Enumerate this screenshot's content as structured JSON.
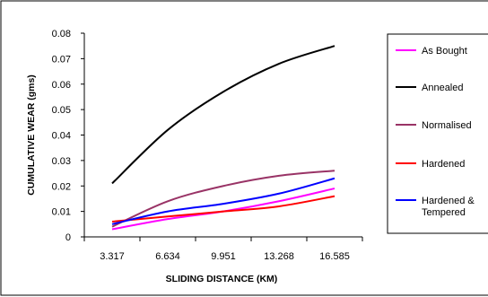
{
  "chart_data": {
    "type": "line",
    "title": "",
    "xlabel": "SLIDING DISTANCE (KM)",
    "ylabel": "CUMULATIVE WEAR (gms)",
    "categories": [
      "3.317",
      "6.634",
      "9.951",
      "13.268",
      "16.585"
    ],
    "x": [
      3.317,
      6.634,
      9.951,
      13.268,
      16.585
    ],
    "ylim": [
      0,
      0.08
    ],
    "yticks": [
      "0",
      "0.01",
      "0.02",
      "0.03",
      "0.04",
      "0.05",
      "0.06",
      "0.07",
      "0.08"
    ],
    "grid": false,
    "legend_position": "right",
    "series": [
      {
        "name": "As Bought",
        "color": "#ff00ff",
        "values": [
          0.003,
          0.007,
          0.01,
          0.014,
          0.019
        ]
      },
      {
        "name": "Annealed",
        "color": "#000000",
        "values": [
          0.021,
          0.042,
          0.057,
          0.068,
          0.075
        ]
      },
      {
        "name": "Normalised",
        "color": "#993366",
        "values": [
          0.004,
          0.014,
          0.02,
          0.024,
          0.026
        ]
      },
      {
        "name": "Hardened",
        "color": "#ff0000",
        "values": [
          0.006,
          0.008,
          0.01,
          0.012,
          0.016
        ]
      },
      {
        "name": "Hardened & Tempered",
        "color": "#0000ff",
        "values": [
          0.005,
          0.01,
          0.013,
          0.017,
          0.023
        ]
      }
    ],
    "legend_lines": [
      [
        "As Bought"
      ],
      [
        "Annealed"
      ],
      [
        "Normalised"
      ],
      [
        "Hardened"
      ],
      [
        "Hardened &",
        "Tempered"
      ]
    ]
  }
}
